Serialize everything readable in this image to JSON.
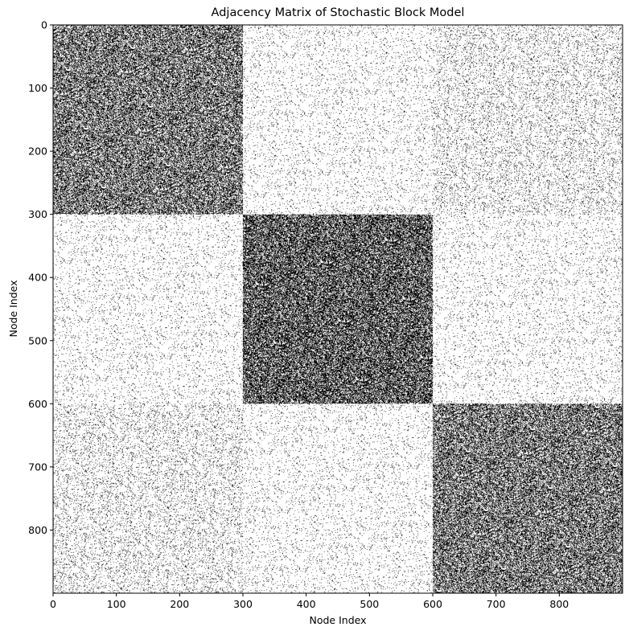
{
  "chart_data": {
    "type": "heatmap",
    "title": "Adjacency Matrix of Stochastic Block Model",
    "xlabel": "Node Index",
    "ylabel": "Node Index",
    "n_nodes": 900,
    "xlim": [
      0,
      900
    ],
    "ylim": [
      900,
      0
    ],
    "x_ticks": [
      "0",
      "100",
      "200",
      "300",
      "400",
      "500",
      "600",
      "700",
      "800"
    ],
    "y_ticks": [
      "0",
      "100",
      "200",
      "300",
      "400",
      "500",
      "600",
      "700",
      "800"
    ],
    "colormap": {
      "edge": "#000000",
      "no_edge": "#ffffff"
    },
    "blocks": [
      {
        "rows": [
          0,
          300
        ],
        "cols": [
          0,
          300
        ],
        "density": 0.5
      },
      {
        "rows": [
          0,
          300
        ],
        "cols": [
          300,
          600
        ],
        "density": 0.05
      },
      {
        "rows": [
          0,
          300
        ],
        "cols": [
          600,
          900
        ],
        "density": 0.1
      },
      {
        "rows": [
          300,
          600
        ],
        "cols": [
          0,
          300
        ],
        "density": 0.05
      },
      {
        "rows": [
          300,
          600
        ],
        "cols": [
          300,
          600
        ],
        "density": 0.6
      },
      {
        "rows": [
          300,
          600
        ],
        "cols": [
          600,
          900
        ],
        "density": 0.05
      },
      {
        "rows": [
          600,
          900
        ],
        "cols": [
          0,
          300
        ],
        "density": 0.1
      },
      {
        "rows": [
          600,
          900
        ],
        "cols": [
          300,
          600
        ],
        "density": 0.05
      },
      {
        "rows": [
          600,
          900
        ],
        "cols": [
          600,
          900
        ],
        "density": 0.5
      }
    ],
    "grid": false,
    "legend": "none"
  }
}
